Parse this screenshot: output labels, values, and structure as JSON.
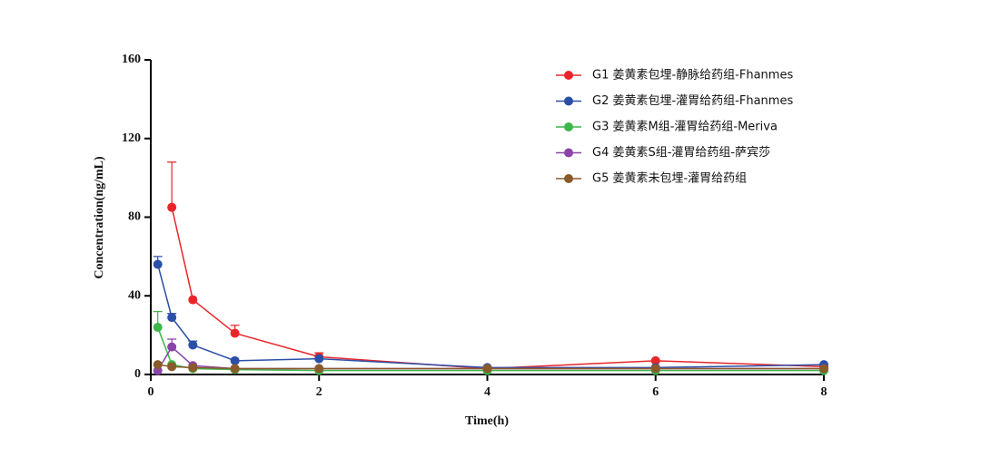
{
  "chart_data": {
    "type": "line",
    "x_label": "Time(h)",
    "y_label": "Concentration(ng/mL)",
    "x": [
      0.083,
      0.25,
      0.5,
      1,
      2,
      4,
      6,
      8
    ],
    "xlim": [
      0,
      8
    ],
    "xticks": [
      0,
      2,
      4,
      6,
      8
    ],
    "ylim": [
      0,
      160
    ],
    "yticks": [
      0,
      40,
      80,
      120,
      160
    ],
    "legend": "upper right",
    "series": [
      {
        "name": "G1 姜黄素包埋-静脉给药组-Fhanmes",
        "color": "#e8262a",
        "values": [
          null,
          85,
          38,
          21,
          9,
          3,
          7,
          4
        ],
        "errors": [
          null,
          23,
          null,
          4,
          2,
          null,
          null,
          null
        ]
      },
      {
        "name": "G2 姜黄素包埋-灌胃给药组-Fhanmes",
        "color": "#2b4fa8",
        "values": [
          56,
          29,
          15,
          7,
          8,
          3.5,
          3.5,
          5
        ],
        "errors": [
          4,
          2,
          2,
          null,
          null,
          null,
          null,
          null
        ]
      },
      {
        "name": "G3 姜黄素M组-灌胃给药组-Meriva",
        "color": "#3cb64a",
        "values": [
          24,
          5,
          3,
          2.5,
          2,
          2,
          2,
          2
        ],
        "errors": [
          8,
          null,
          null,
          null,
          null,
          null,
          null,
          null
        ]
      },
      {
        "name": "G4 姜黄素S组-灌胃给药组-萨宾莎",
        "color": "#8a44a8",
        "values": [
          2,
          14,
          4.5,
          3,
          3,
          3,
          3,
          3
        ],
        "errors": [
          null,
          4,
          null,
          null,
          null,
          null,
          null,
          null
        ]
      },
      {
        "name": "G5 姜黄素未包埋-灌胃给药组",
        "color": "#8b5a2b",
        "values": [
          5,
          4,
          3.5,
          3,
          3,
          3,
          3,
          3
        ],
        "errors": [
          null,
          null,
          null,
          null,
          null,
          null,
          null,
          null
        ]
      }
    ]
  }
}
